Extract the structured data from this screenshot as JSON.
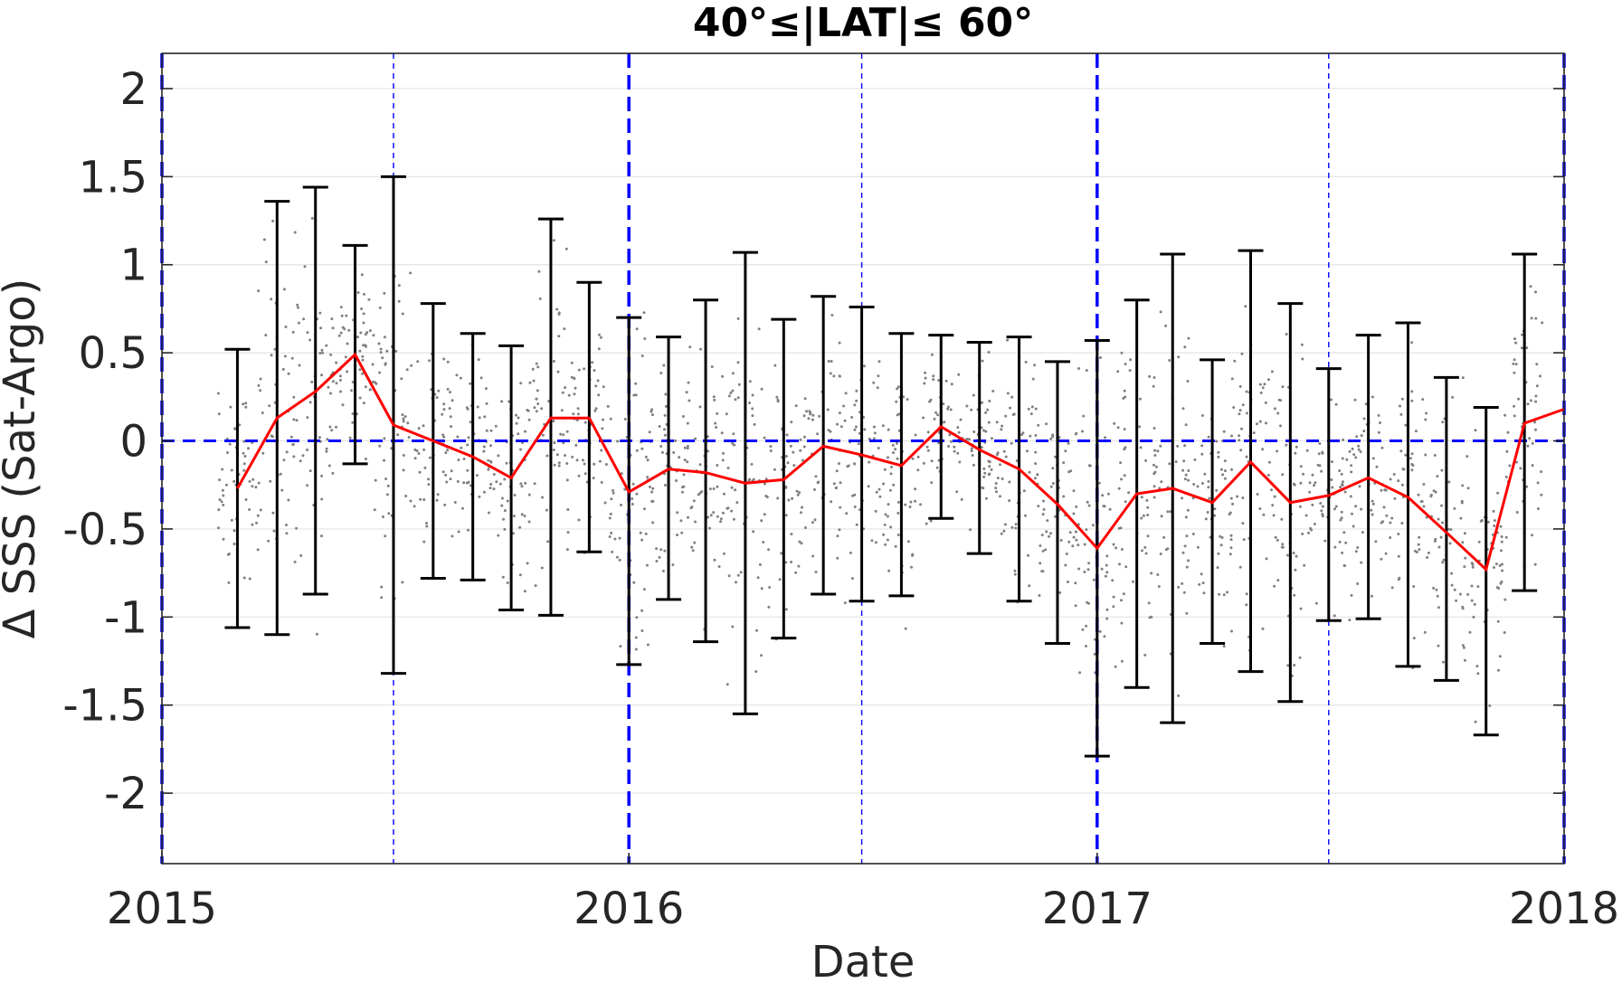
{
  "chart_data": {
    "type": "line",
    "title": "40°≤|LAT|≤ 60°",
    "xlabel": "Date",
    "ylabel": "Δ SSS (Sat-Argo)",
    "xlim": [
      "2015-01-01",
      "2018-01-01"
    ],
    "ylim": [
      -2.4,
      2.2
    ],
    "x_ticks": [
      "2015",
      "2016",
      "2017",
      "2018"
    ],
    "y_ticks": [
      2,
      1.5,
      1,
      0.5,
      0,
      -0.5,
      -1,
      -1.5,
      -2
    ],
    "y_tick_labels": [
      "2",
      "1.5",
      "1",
      "0.5",
      "0",
      "-0.5",
      "-1",
      "-1.5",
      "-2"
    ],
    "grid": "horizontal",
    "colors": {
      "mean_line": "#ff0000",
      "error_bars": "#000000",
      "reference_lines": "#0000ff",
      "scatter": "#808080"
    },
    "mean_series": {
      "x": [
        "2015-03-01",
        "2015-04-01",
        "2015-05-01",
        "2015-06-01",
        "2015-07-01",
        "2015-08-01",
        "2015-09-01",
        "2015-10-01",
        "2015-11-01",
        "2015-12-01",
        "2016-01-01",
        "2016-02-01",
        "2016-03-01",
        "2016-04-01",
        "2016-05-01",
        "2016-06-01",
        "2016-07-01",
        "2016-08-01",
        "2016-09-01",
        "2016-10-01",
        "2016-11-01",
        "2016-12-01",
        "2017-01-01",
        "2017-02-01",
        "2017-03-01",
        "2017-04-01",
        "2017-05-01",
        "2017-06-01",
        "2017-07-01",
        "2017-08-01",
        "2017-09-01",
        "2017-10-01",
        "2017-11-01",
        "2017-12-01",
        "2018-01-01"
      ],
      "y": [
        -0.27,
        0.13,
        0.28,
        0.49,
        0.09,
        0.0,
        -0.09,
        -0.21,
        0.13,
        0.13,
        -0.29,
        -0.16,
        -0.18,
        -0.24,
        -0.22,
        -0.03,
        -0.08,
        -0.14,
        0.08,
        -0.05,
        -0.16,
        -0.36,
        -0.61,
        -0.3,
        -0.27,
        -0.35,
        -0.12,
        -0.35,
        -0.31,
        -0.21,
        -0.32,
        -0.52,
        -0.73,
        0.1,
        0.18
      ],
      "upper": [
        0.52,
        1.36,
        1.44,
        1.11,
        1.5,
        0.78,
        0.61,
        0.54,
        1.26,
        0.9,
        0.7,
        0.59,
        0.8,
        1.07,
        0.69,
        0.82,
        0.76,
        0.61,
        0.6,
        0.56,
        0.59,
        0.45,
        0.57,
        0.8,
        1.06,
        0.46,
        1.08,
        0.78,
        0.41,
        0.6,
        0.67,
        0.36,
        0.19,
        1.06,
        null
      ],
      "lower": [
        -1.06,
        -1.1,
        -0.87,
        -0.13,
        -1.32,
        -0.78,
        -0.79,
        -0.96,
        -0.99,
        -0.63,
        -1.27,
        -0.9,
        -1.14,
        -1.55,
        -1.12,
        -0.87,
        -0.91,
        -0.88,
        -0.44,
        -0.64,
        -0.91,
        -1.15,
        -1.79,
        -1.4,
        -1.6,
        -1.15,
        -1.31,
        -1.48,
        -1.02,
        -1.01,
        -1.28,
        -1.36,
        -1.67,
        -0.85,
        null
      ]
    },
    "reference_lines": [
      {
        "axis": "y",
        "value": 0,
        "style": "dashed"
      },
      {
        "axis": "x",
        "value": "2015-01-01",
        "style": "dashed-thick"
      },
      {
        "axis": "x",
        "value": "2015-07-01",
        "style": "dashed-thin"
      },
      {
        "axis": "x",
        "value": "2016-01-01",
        "style": "dashed-thick"
      },
      {
        "axis": "x",
        "value": "2016-07-01",
        "style": "dashed-thin"
      },
      {
        "axis": "x",
        "value": "2017-01-01",
        "style": "dashed-thick"
      },
      {
        "axis": "x",
        "value": "2017-07-01",
        "style": "dashed-thin"
      },
      {
        "axis": "x",
        "value": "2018-01-01",
        "style": "dashed-thick"
      }
    ],
    "scatter_note": "dense cloud of individual match-up differences"
  }
}
